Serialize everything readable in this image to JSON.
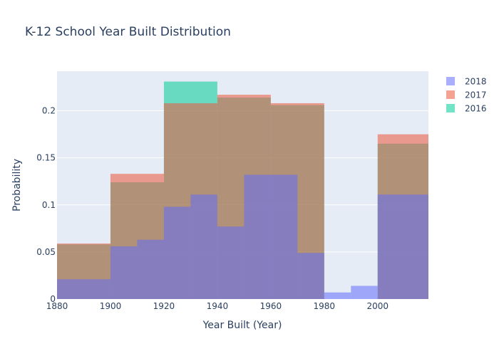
{
  "chart_data": {
    "type": "bar",
    "subtype": "overlaid-histogram",
    "title": "K-12 School Year Built Distribution",
    "xlabel": "Year Built (Year)",
    "ylabel": "Probability",
    "xlim": [
      1880,
      2019
    ],
    "ylim": [
      0,
      0.242
    ],
    "x_ticks": [
      1880,
      1900,
      1920,
      1940,
      1960,
      1980,
      2000
    ],
    "y_ticks": [
      0,
      0.05,
      0.1,
      0.15,
      0.2
    ],
    "y_tick_labels": [
      "0",
      "0.05",
      "0.1",
      "0.15",
      "0.2"
    ],
    "grid": true,
    "legend_position": "top-right",
    "bar_opacity": 0.55,
    "plot_background": "#e5ecf6",
    "series": [
      {
        "name": "2016",
        "color": "#00cc96",
        "bins": [
          {
            "x0": 1880,
            "x1": 1900,
            "value": 0.058
          },
          {
            "x0": 1900,
            "x1": 1920,
            "value": 0.124
          },
          {
            "x0": 1920,
            "x1": 1940,
            "value": 0.231
          },
          {
            "x0": 1940,
            "x1": 1960,
            "value": 0.214
          },
          {
            "x0": 1960,
            "x1": 1980,
            "value": 0.206
          },
          {
            "x0": 2000,
            "x1": 2019,
            "value": 0.165
          }
        ]
      },
      {
        "name": "2017",
        "color": "#ef553b",
        "bins": [
          {
            "x0": 1880,
            "x1": 1900,
            "value": 0.059
          },
          {
            "x0": 1900,
            "x1": 1920,
            "value": 0.133
          },
          {
            "x0": 1920,
            "x1": 1940,
            "value": 0.208
          },
          {
            "x0": 1940,
            "x1": 1960,
            "value": 0.217
          },
          {
            "x0": 1960,
            "x1": 1980,
            "value": 0.208
          },
          {
            "x0": 2000,
            "x1": 2019,
            "value": 0.175
          }
        ]
      },
      {
        "name": "2018",
        "color": "#636efa",
        "bins": [
          {
            "x0": 1880,
            "x1": 1900,
            "value": 0.021
          },
          {
            "x0": 1900,
            "x1": 1910,
            "value": 0.056
          },
          {
            "x0": 1910,
            "x1": 1920,
            "value": 0.063
          },
          {
            "x0": 1920,
            "x1": 1930,
            "value": 0.098
          },
          {
            "x0": 1930,
            "x1": 1940,
            "value": 0.111
          },
          {
            "x0": 1940,
            "x1": 1950,
            "value": 0.077
          },
          {
            "x0": 1950,
            "x1": 1970,
            "value": 0.132
          },
          {
            "x0": 1970,
            "x1": 1980,
            "value": 0.049
          },
          {
            "x0": 1980,
            "x1": 1990,
            "value": 0.007
          },
          {
            "x0": 1990,
            "x1": 2000,
            "value": 0.014
          },
          {
            "x0": 2000,
            "x1": 2019,
            "value": 0.111
          }
        ]
      }
    ],
    "legend_order": [
      "2018",
      "2017",
      "2016"
    ]
  }
}
